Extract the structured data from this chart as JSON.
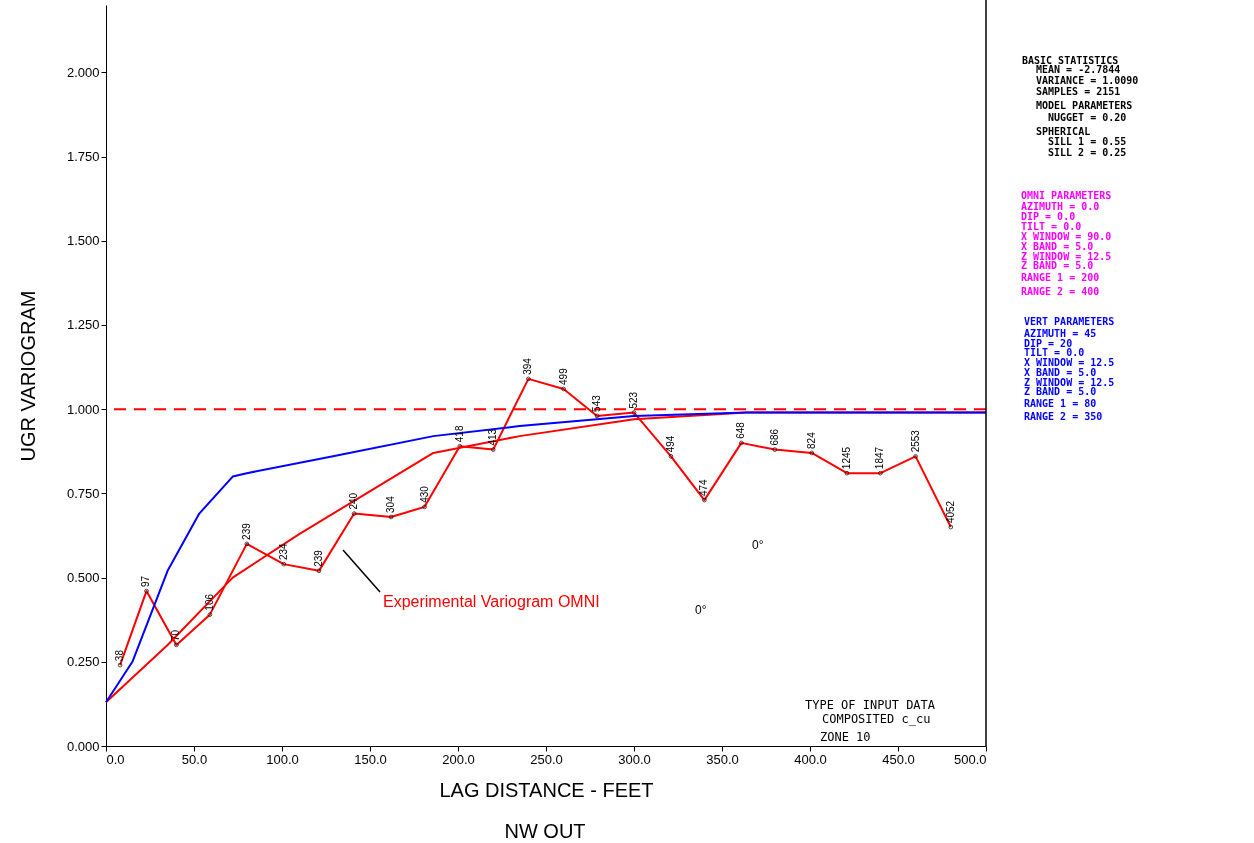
{
  "chart_data": {
    "type": "line",
    "xlabel": "LAG DISTANCE - FEET",
    "ylabel": "UGR VARIOGRAM",
    "xlim": [
      0,
      500
    ],
    "ylim": [
      0,
      2.2
    ],
    "xticks": [
      {
        "value": 0,
        "label": "0.0"
      },
      {
        "value": 50,
        "label": "50.0"
      },
      {
        "value": 100,
        "label": "100.0"
      },
      {
        "value": 150,
        "label": "150.0"
      },
      {
        "value": 200,
        "label": "200.0"
      },
      {
        "value": 250,
        "label": "250.0"
      },
      {
        "value": 300,
        "label": "300.0"
      },
      {
        "value": 350,
        "label": "350.0"
      },
      {
        "value": 400,
        "label": "400.0"
      },
      {
        "value": 450,
        "label": "450.0"
      },
      {
        "value": 500,
        "label": "500.0"
      }
    ],
    "yticks": [
      {
        "value": 0,
        "label": "0.000"
      },
      {
        "value": 0.25,
        "label": "0.250"
      },
      {
        "value": 0.5,
        "label": "0.500"
      },
      {
        "value": 0.75,
        "label": "0.750"
      },
      {
        "value": 1,
        "label": "1.000"
      },
      {
        "value": 1.25,
        "label": "1.250"
      },
      {
        "value": 1.5,
        "label": "1.500"
      },
      {
        "value": 1.75,
        "label": "1.750"
      },
      {
        "value": 2,
        "label": "2.000"
      }
    ],
    "grid": false,
    "series": [
      {
        "name": "Experimental Variogram OMNI",
        "color": "#ff0000",
        "marker": "circle",
        "x": [
          8,
          23,
          40,
          59,
          80,
          101,
          121,
          141,
          162,
          181,
          201,
          220,
          240,
          260,
          279,
          300,
          321,
          340,
          361,
          380,
          401,
          421,
          440,
          460,
          480
        ],
        "values": [
          0.24,
          0.46,
          0.3,
          0.39,
          0.6,
          0.54,
          0.52,
          0.69,
          0.68,
          0.71,
          0.89,
          0.88,
          1.09,
          1.06,
          0.98,
          0.99,
          0.86,
          0.73,
          0.9,
          0.88,
          0.87,
          0.81,
          0.81,
          0.86,
          0.65
        ]
      },
      {
        "color": "#ff0000",
        "marker": "none",
        "x": [
          0,
          35,
          72,
          110,
          148,
          186,
          235,
          300,
          364,
          500
        ],
        "values": [
          0.13,
          0.3,
          0.5,
          0.63,
          0.75,
          0.87,
          0.92,
          0.97,
          0.99,
          0.99
        ]
      },
      {
        "color": "#0000ff",
        "marker": "none",
        "x": [
          0,
          15,
          35,
          53,
          72,
          80,
          129,
          186,
          235,
          300,
          364,
          500
        ],
        "values": [
          0.13,
          0.25,
          0.52,
          0.69,
          0.8,
          0.81,
          0.86,
          0.92,
          0.95,
          0.98,
          0.99,
          0.99
        ]
      }
    ],
    "ref_lines": [
      {
        "axis": "y",
        "value": 1.0,
        "color": "#ff0000",
        "line_style": "dashed"
      }
    ],
    "annotations": [
      "BASIC STATISTICS",
      "MEAN = -2.7844",
      "VARIANCE = 1.0090",
      "SAMPLES = 2151",
      "MODEL PARAMETERS",
      "NUGGET = 0.20",
      "SPHERICAL",
      "SILL 1 = 0.55",
      "SILL 2 = 0.25",
      "OMNI PARAMETERS",
      "AZIMUTH = 0.0",
      "DIP = 0.0",
      "TILT = 0.0",
      "X WINDOW = 90.0",
      "X BAND = 5.0",
      "Z WINDOW = 12.5",
      "Z BAND = 5.0",
      "RANGE 1 = 200",
      "RANGE 2 = 400",
      "VERT PARAMETERS",
      "AZIMUTH = 45",
      "DIP = 20",
      "TILT = 0.0",
      "X WINDOW = 12.5",
      "X BAND = 5.0",
      "Z WINDOW = 12.5",
      "Z BAND = 5.0",
      "RANGE 1 = 80",
      "RANGE 2 = 350",
      "TYPE OF INPUT DATA",
      "COMPOSITED c_cu",
      "ZONE 10",
      "NW OUT",
      "0°",
      "0°",
      {
        "text": "38",
        "x": 8,
        "y": 0.24
      },
      {
        "text": "97",
        "x": 23,
        "y": 0.46
      },
      {
        "text": "70",
        "x": 40,
        "y": 0.3
      },
      {
        "text": "106",
        "x": 59,
        "y": 0.39
      },
      {
        "text": "239",
        "x": 80,
        "y": 0.6
      },
      {
        "text": "234",
        "x": 101,
        "y": 0.54
      },
      {
        "text": "239",
        "x": 121,
        "y": 0.52
      },
      {
        "text": "240",
        "x": 141,
        "y": 0.69
      },
      {
        "text": "304",
        "x": 162,
        "y": 0.68
      },
      {
        "text": "430",
        "x": 181,
        "y": 0.71
      },
      {
        "text": "418",
        "x": 201,
        "y": 0.89
      },
      {
        "text": "413",
        "x": 220,
        "y": 0.88
      },
      {
        "text": "394",
        "x": 240,
        "y": 1.09
      },
      {
        "text": "499",
        "x": 260,
        "y": 1.06
      },
      {
        "text": "543",
        "x": 279,
        "y": 0.98
      },
      {
        "text": "523",
        "x": 300,
        "y": 0.99
      },
      {
        "text": "494",
        "x": 321,
        "y": 0.86
      },
      {
        "text": "474",
        "x": 340,
        "y": 0.73
      },
      {
        "text": "648",
        "x": 361,
        "y": 0.9
      },
      {
        "text": "686",
        "x": 380,
        "y": 0.88
      },
      {
        "text": "824",
        "x": 401,
        "y": 0.87
      },
      {
        "text": "1245",
        "x": 421,
        "y": 0.81
      },
      {
        "text": "1847",
        "x": 440,
        "y": 0.81
      },
      {
        "text": "2553",
        "x": 460,
        "y": 0.86
      },
      {
        "text": "4052",
        "x": 480,
        "y": 0.65
      }
    ]
  }
}
